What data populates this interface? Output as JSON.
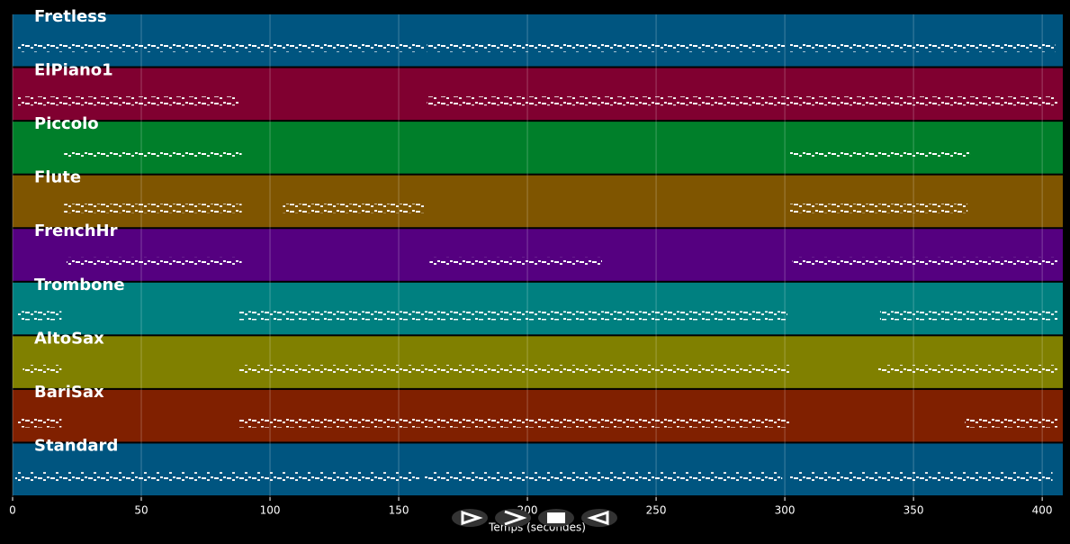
{
  "chart_data": {
    "type": "lanes",
    "xlabel": "Temps (secondes)",
    "xlim": [
      0,
      408
    ],
    "xticks": [
      0,
      50,
      100,
      150,
      200,
      250,
      300,
      350,
      400
    ],
    "grid": true,
    "tracks": [
      {
        "name": "Fretless",
        "color": "#005580",
        "spans": [
          [
            2,
            160
          ],
          [
            161,
            300
          ],
          [
            302,
            405
          ]
        ]
      },
      {
        "name": "ElPiano1",
        "color": "#800030",
        "spans": [
          [
            2,
            88
          ],
          [
            161,
            406
          ]
        ]
      },
      {
        "name": "Piccolo",
        "color": "#007f2a",
        "spans": [
          [
            20,
            89
          ],
          [
            302,
            372
          ]
        ]
      },
      {
        "name": "Flute",
        "color": "#7f5500",
        "spans": [
          [
            20,
            89
          ],
          [
            105,
            160
          ],
          [
            302,
            371
          ]
        ]
      },
      {
        "name": "FrenchHr",
        "color": "#550080",
        "spans": [
          [
            21,
            89
          ],
          [
            162,
            229
          ],
          [
            303,
            406
          ]
        ]
      },
      {
        "name": "Trombone",
        "color": "#008080",
        "spans": [
          [
            2,
            19
          ],
          [
            88,
            301
          ],
          [
            337,
            406
          ]
        ]
      },
      {
        "name": "AltoSax",
        "color": "#808000",
        "spans": [
          [
            4,
            19
          ],
          [
            88,
            302
          ],
          [
            336,
            406
          ]
        ]
      },
      {
        "name": "BariSax",
        "color": "#802000",
        "spans": [
          [
            2,
            19
          ],
          [
            88,
            302
          ],
          [
            370,
            406
          ]
        ]
      },
      {
        "name": "Standard",
        "color": "#005580",
        "spans": [
          [
            1,
            158
          ],
          [
            160,
            299
          ],
          [
            302,
            404
          ]
        ]
      }
    ]
  }
}
